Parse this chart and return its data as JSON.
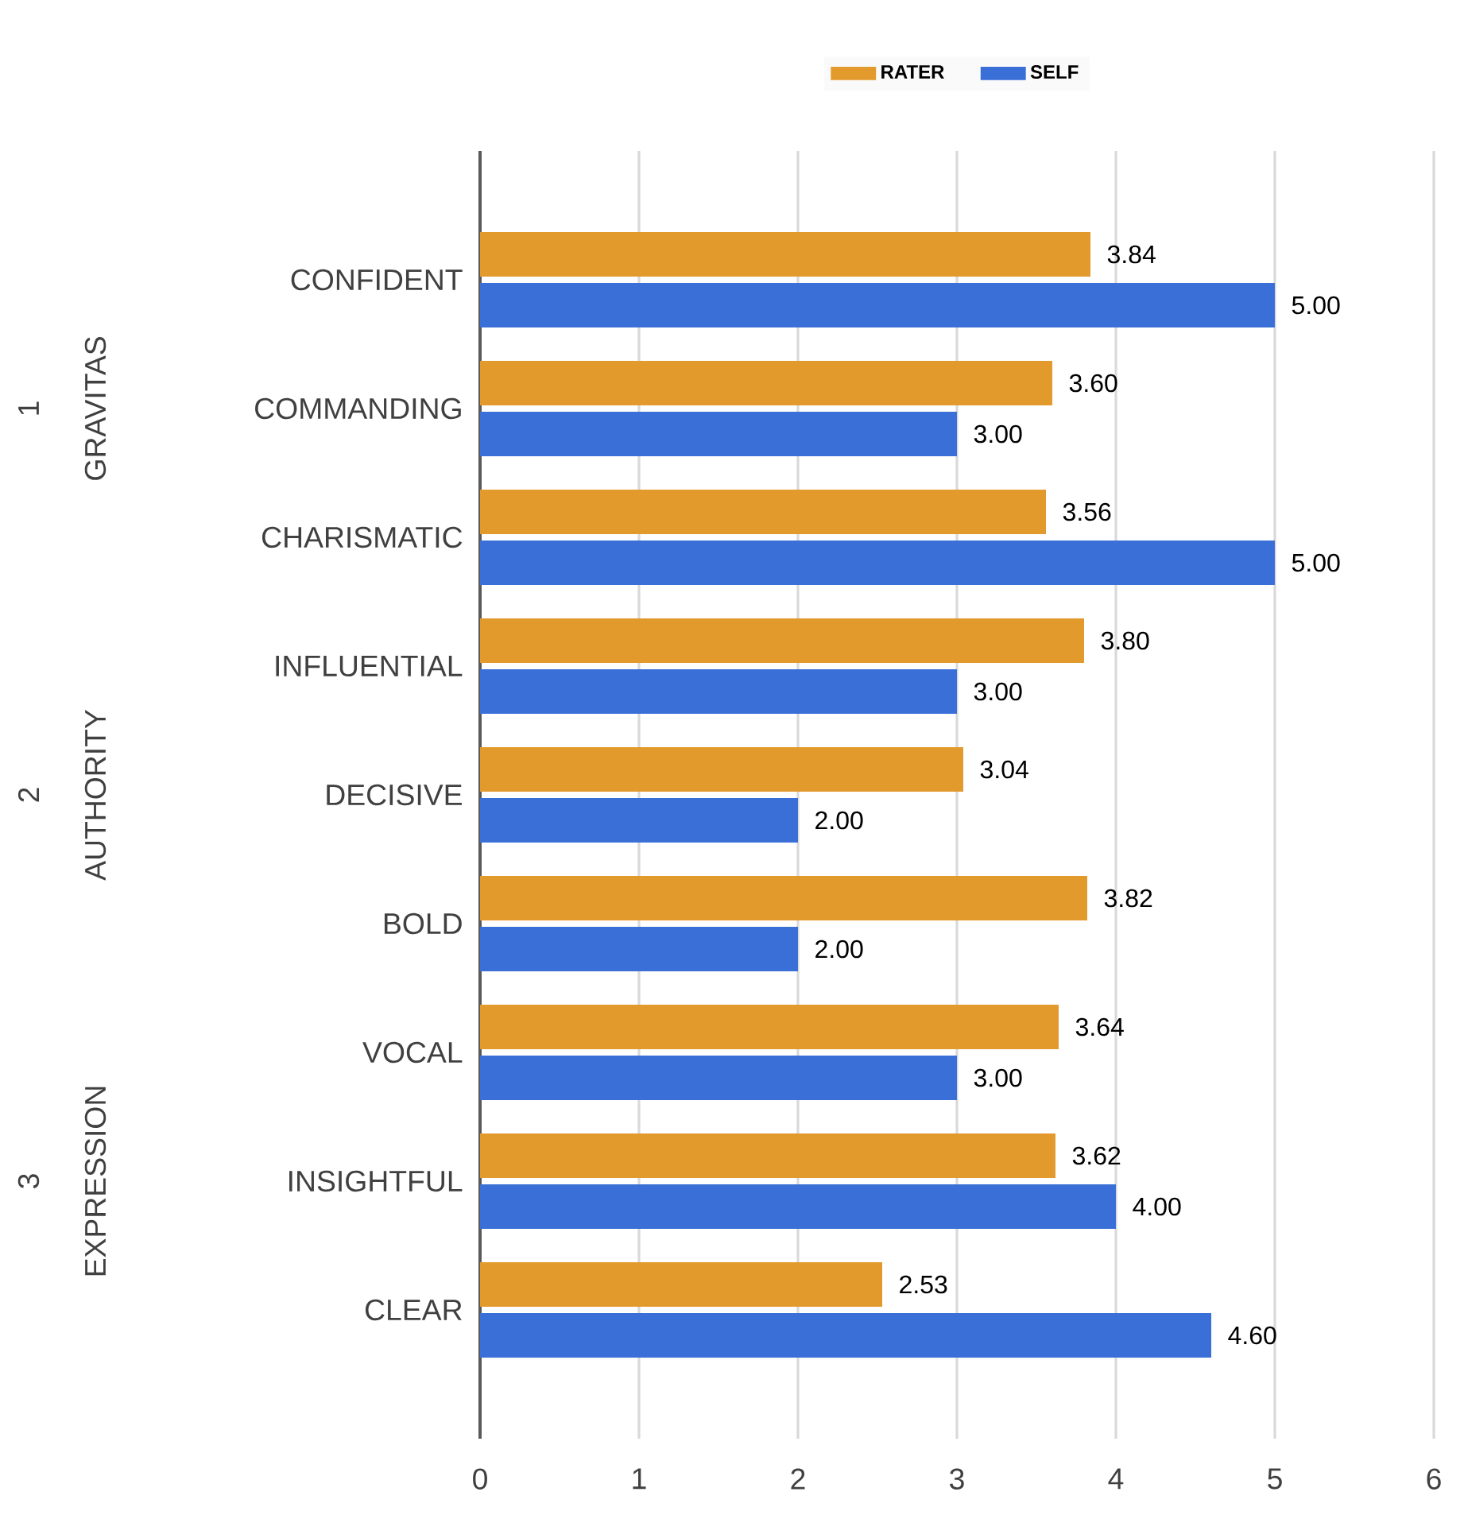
{
  "chart_data": {
    "type": "bar",
    "orientation": "horizontal",
    "categories": [
      "CONFIDENT",
      "COMMANDING",
      "CHARISMATIC",
      "INFLUENTIAL",
      "DECISIVE",
      "BOLD",
      "VOCAL",
      "INSIGHTFUL",
      "CLEAR"
    ],
    "series": [
      {
        "name": "RATER",
        "color": "#e39a2d",
        "values": [
          3.84,
          3.6,
          3.56,
          3.8,
          3.04,
          3.82,
          3.64,
          3.62,
          2.53
        ],
        "value_labels": [
          "3.84",
          "3.60",
          "3.56",
          "3.80",
          "3.04",
          "3.82",
          "3.64",
          "3.62",
          "2.53"
        ]
      },
      {
        "name": "SELF",
        "color": "#3a6fd8",
        "values": [
          5.0,
          3.0,
          5.0,
          3.0,
          2.0,
          2.0,
          3.0,
          4.0,
          4.6
        ],
        "value_labels": [
          "5.00",
          "3.00",
          "5.00",
          "3.00",
          "2.00",
          "2.00",
          "3.00",
          "4.00",
          "4.60"
        ]
      }
    ],
    "annotations": [
      "1",
      "GRAVITAS",
      "2",
      "AUTHORITY",
      "3",
      "EXPRESSION"
    ],
    "xlim": [
      0,
      6
    ],
    "xticks": [
      0,
      1,
      2,
      3,
      4,
      5,
      6
    ],
    "grid": "x",
    "legend": "top"
  }
}
